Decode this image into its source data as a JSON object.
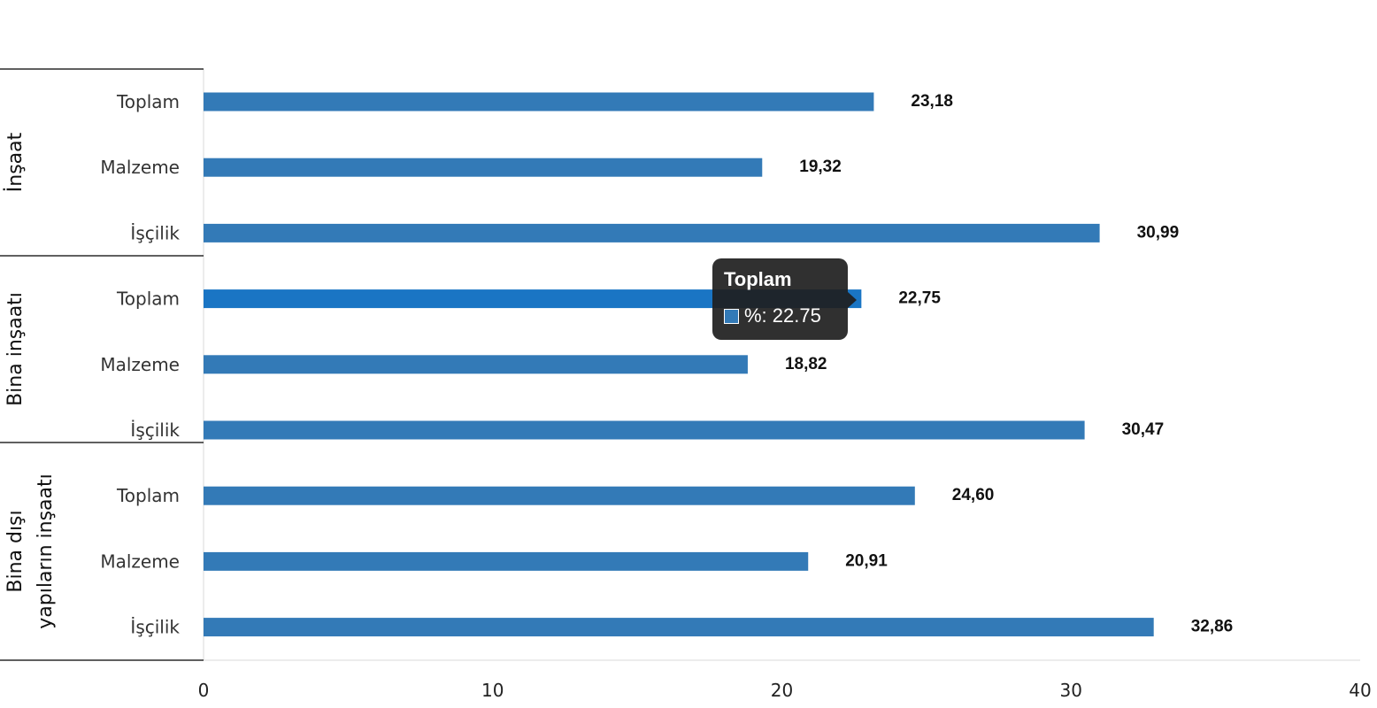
{
  "chart_data": {
    "type": "bar",
    "orientation": "horizontal",
    "xlim": [
      0,
      40
    ],
    "xticks": [
      "0",
      "10",
      "20",
      "30",
      "40"
    ],
    "groups": [
      {
        "label": "İnşaat",
        "label_lines": [
          "İnşaat"
        ],
        "categories": [
          "Toplam",
          "Malzeme",
          "İşçilik"
        ],
        "values": [
          23.18,
          19.32,
          30.99
        ],
        "value_labels": [
          "23,18",
          "19,32",
          "30,99"
        ]
      },
      {
        "label": "Bina inşaatı",
        "label_lines": [
          "Bina inşaatı"
        ],
        "categories": [
          "Toplam",
          "Malzeme",
          "İşçilik"
        ],
        "values": [
          22.75,
          18.82,
          30.47
        ],
        "value_labels": [
          "22,75",
          "18,82",
          "30,47"
        ]
      },
      {
        "label": "Bina dışı yapıların inşaatı",
        "label_lines": [
          "Bina dışı",
          "yapıların inşaatı"
        ],
        "categories": [
          "Toplam",
          "Malzeme",
          "İşçilik"
        ],
        "values": [
          24.6,
          20.91,
          32.86
        ],
        "value_labels": [
          "24,60",
          "20,91",
          "32,86"
        ]
      }
    ],
    "bar_color": "#337ab7",
    "highlight_color": "#1a75c4",
    "highlighted_bar": "Bina inşaatı / Toplam",
    "grid": false
  },
  "tooltip": {
    "title": "Toplam",
    "value_text": "%: 22.75",
    "swatch_color": "#337ab7"
  }
}
